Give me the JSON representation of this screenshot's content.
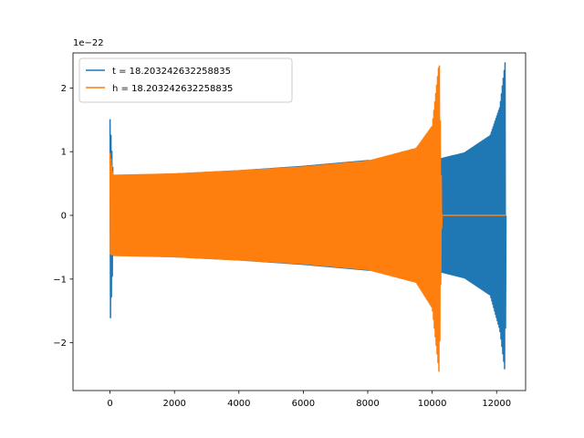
{
  "chart_data": {
    "type": "line",
    "title": "",
    "xlabel": "",
    "ylabel": "",
    "y_offset_text": "1e−22",
    "xlim": [
      -1150,
      12900
    ],
    "ylim": [
      -2.75,
      2.55
    ],
    "x_ticks": [
      0,
      2000,
      4000,
      6000,
      8000,
      10000,
      12000
    ],
    "x_tick_labels": [
      "0",
      "2000",
      "4000",
      "6000",
      "8000",
      "10000",
      "12000"
    ],
    "y_ticks": [
      -2,
      -1,
      0,
      1,
      2
    ],
    "y_tick_labels": [
      "−2",
      "−1",
      "0",
      "1",
      "2"
    ],
    "grid": false,
    "legend_position": "upper-left",
    "series": [
      {
        "name": "t = 18.203242632258835",
        "color": "#1f77b4",
        "x_start": 0,
        "x_end": 12290,
        "envelope": [
          {
            "x": 0,
            "max": 1.51,
            "min": -1.77
          },
          {
            "x": 100,
            "max": 0.62,
            "min": -0.62
          },
          {
            "x": 2000,
            "max": 0.65,
            "min": -0.65
          },
          {
            "x": 4000,
            "max": 0.7,
            "min": -0.7
          },
          {
            "x": 6000,
            "max": 0.77,
            "min": -0.77
          },
          {
            "x": 8000,
            "max": 0.86,
            "min": -0.86
          },
          {
            "x": 10200,
            "max": 0.88,
            "min": -0.88
          },
          {
            "x": 11000,
            "max": 0.98,
            "min": -0.98
          },
          {
            "x": 11800,
            "max": 1.25,
            "min": -1.25
          },
          {
            "x": 12100,
            "max": 1.7,
            "min": -1.8
          },
          {
            "x": 12270,
            "max": 2.43,
            "min": -2.5
          },
          {
            "x": 12290,
            "max": 0,
            "min": 0
          }
        ]
      },
      {
        "name": "h = 18.203242632258835",
        "color": "#ff7f0e",
        "x_start": 0,
        "x_end": 12290,
        "envelope": [
          {
            "x": 0,
            "max": 0.98,
            "min": -0.6
          },
          {
            "x": 100,
            "max": 0.63,
            "min": -0.63
          },
          {
            "x": 2000,
            "max": 0.65,
            "min": -0.65
          },
          {
            "x": 4000,
            "max": 0.7,
            "min": -0.7
          },
          {
            "x": 6000,
            "max": 0.76,
            "min": -0.76
          },
          {
            "x": 8000,
            "max": 0.85,
            "min": -0.85
          },
          {
            "x": 9500,
            "max": 1.05,
            "min": -1.05
          },
          {
            "x": 10000,
            "max": 1.4,
            "min": -1.45
          },
          {
            "x": 10220,
            "max": 2.43,
            "min": -2.5
          },
          {
            "x": 10300,
            "max": 0,
            "min": 0
          },
          {
            "x": 12290,
            "max": 0,
            "min": 0
          }
        ]
      }
    ]
  }
}
